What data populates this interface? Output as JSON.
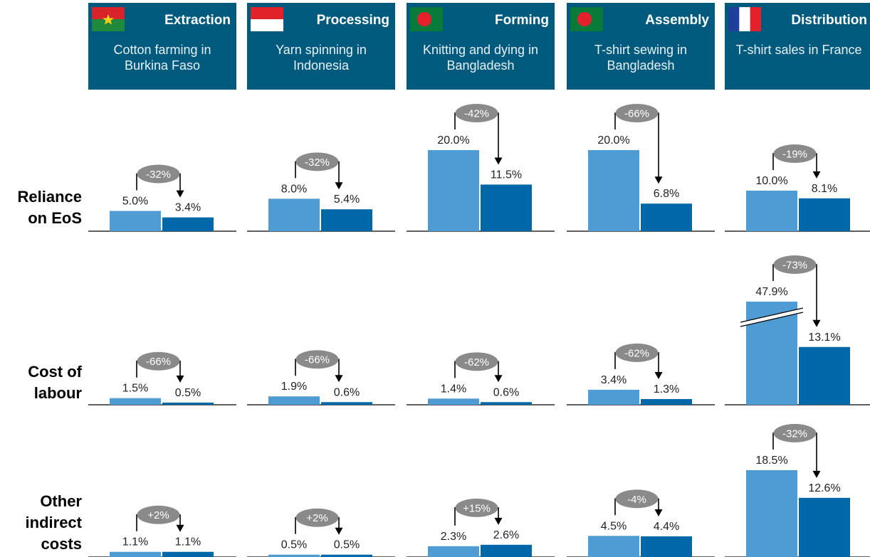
{
  "colors": {
    "header_bg": "#005a7e",
    "before_bar": "#4f9bd4",
    "after_bar": "#0068a8",
    "badge": "#8a8a8a",
    "axis": "#000000"
  },
  "stages": [
    {
      "name": "Extraction",
      "description": "Cotton farming in Burkina Faso",
      "flag": "burkina-faso-flag-icon"
    },
    {
      "name": "Processing",
      "description": "Yarn spinning in Indonesia",
      "flag": "indonesia-flag-icon"
    },
    {
      "name": "Forming",
      "description": "Knitting and dying in Bangladesh",
      "flag": "bangladesh-flag-icon"
    },
    {
      "name": "Assembly",
      "description": "T-shirt sewing in Bangladesh",
      "flag": "bangladesh-flag-icon"
    },
    {
      "name": "Distribution",
      "description": "T-shirt sales in France",
      "flag": "france-flag-icon"
    }
  ],
  "rows": [
    {
      "label_lines": [
        "Reliance",
        "on EoS"
      ]
    },
    {
      "label_lines": [
        "Cost of",
        "labour"
      ]
    },
    {
      "label_lines": [
        "Other",
        "indirect",
        "costs"
      ]
    }
  ],
  "chart_data": {
    "type": "bar",
    "categories": [
      "Extraction",
      "Processing",
      "Forming",
      "Assembly",
      "Distribution"
    ],
    "panels": [
      {
        "row": "Reliance on EoS",
        "before": [
          5.0,
          8.0,
          20.0,
          20.0,
          10.0
        ],
        "after": [
          3.4,
          5.4,
          11.5,
          6.8,
          8.1
        ],
        "before_labels": [
          "5.0%",
          "8.0%",
          "20.0%",
          "20.0%",
          "10.0%"
        ],
        "after_labels": [
          "3.4%",
          "5.4%",
          "11.5%",
          "6.8%",
          "8.1%"
        ],
        "change_labels": [
          "-32%",
          "-32%",
          "-42%",
          "-66%",
          "-19%"
        ],
        "broken_axis": [
          false,
          false,
          false,
          false,
          false
        ]
      },
      {
        "row": "Cost of labour",
        "before": [
          1.5,
          1.9,
          1.4,
          3.4,
          47.9
        ],
        "after": [
          0.5,
          0.6,
          0.6,
          1.3,
          13.1
        ],
        "before_labels": [
          "1.5%",
          "1.9%",
          "1.4%",
          "3.4%",
          "47.9%"
        ],
        "after_labels": [
          "0.5%",
          "0.6%",
          "0.6%",
          "1.3%",
          "13.1%"
        ],
        "change_labels": [
          "-66%",
          "-66%",
          "-62%",
          "-62%",
          "-73%"
        ],
        "broken_axis": [
          false,
          false,
          false,
          false,
          true
        ]
      },
      {
        "row": "Other indirect costs",
        "before": [
          1.1,
          0.5,
          2.3,
          4.5,
          18.5
        ],
        "after": [
          1.1,
          0.5,
          2.6,
          4.4,
          12.6
        ],
        "before_labels": [
          "1.1%",
          "0.5%",
          "2.3%",
          "4.5%",
          "18.5%"
        ],
        "after_labels": [
          "1.1%",
          "0.5%",
          "2.6%",
          "4.4%",
          "12.6%"
        ],
        "change_labels": [
          "+2%",
          "+2%",
          "+15%",
          "-4%",
          "-32%"
        ],
        "broken_axis": [
          false,
          false,
          false,
          false,
          false
        ]
      }
    ]
  }
}
